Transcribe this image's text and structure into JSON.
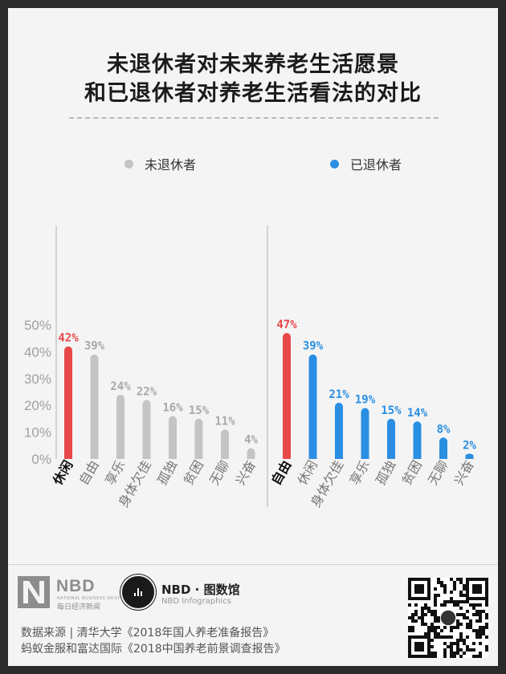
{
  "title_line1": "未退休者对未来养老生活愿景",
  "title_line2": "和已退休者对养老生活看法的对比",
  "legend": [
    {
      "label": "未退休者",
      "color": "#c4c4c4"
    },
    {
      "label": "已退休者",
      "color": "#2a8fe2"
    }
  ],
  "colors": {
    "highlight": "#e8484a",
    "gray": "#c4c4c4",
    "blue": "#2a8fe2",
    "gray_label": "#a8a8a8"
  },
  "chart_data": [
    {
      "type": "bar",
      "title": "",
      "xlabel": "",
      "ylabel": "",
      "ylim": [
        0,
        50
      ],
      "yticks": [
        "0%",
        "10%",
        "20%",
        "30%",
        "40%",
        "50%"
      ],
      "series": [
        {
          "name": "未退休者",
          "values": [
            42,
            39,
            24,
            22,
            16,
            15,
            11,
            4
          ]
        }
      ],
      "categories": [
        "休闲",
        "自由",
        "享乐",
        "身体欠佳",
        "孤独",
        "贫困",
        "无聊",
        "兴奋"
      ],
      "data_labels": [
        "42%",
        "39%",
        "24%",
        "22%",
        "16%",
        "15%",
        "11%",
        "4%"
      ],
      "highlight_index": 0
    },
    {
      "type": "bar",
      "title": "",
      "xlabel": "",
      "ylabel": "",
      "ylim": [
        0,
        50
      ],
      "series": [
        {
          "name": "已退休者",
          "values": [
            47,
            39,
            21,
            19,
            15,
            14,
            8,
            2
          ]
        }
      ],
      "categories": [
        "自由",
        "休闲",
        "身体欠佳",
        "享乐",
        "孤独",
        "贫困",
        "无聊",
        "兴奋"
      ],
      "data_labels": [
        "47%",
        "39%",
        "21%",
        "19%",
        "15%",
        "14%",
        "8%",
        "2%"
      ],
      "highlight_index": 0
    }
  ],
  "footer": {
    "nbd_logo": "NBD",
    "nbd_sub_en": "NATIONAL BUSINESS DAILY",
    "nbd_sub_cn": "每日经济新闻",
    "info_title": "NBD · 图数馆",
    "info_sub": "NBD Infographics",
    "source_line1": "数据来源 | 清华大学《2018年国人养老准备报告》",
    "source_line2": "蚂蚁金服和富达国际《2018中国养老前景调查报告》"
  }
}
